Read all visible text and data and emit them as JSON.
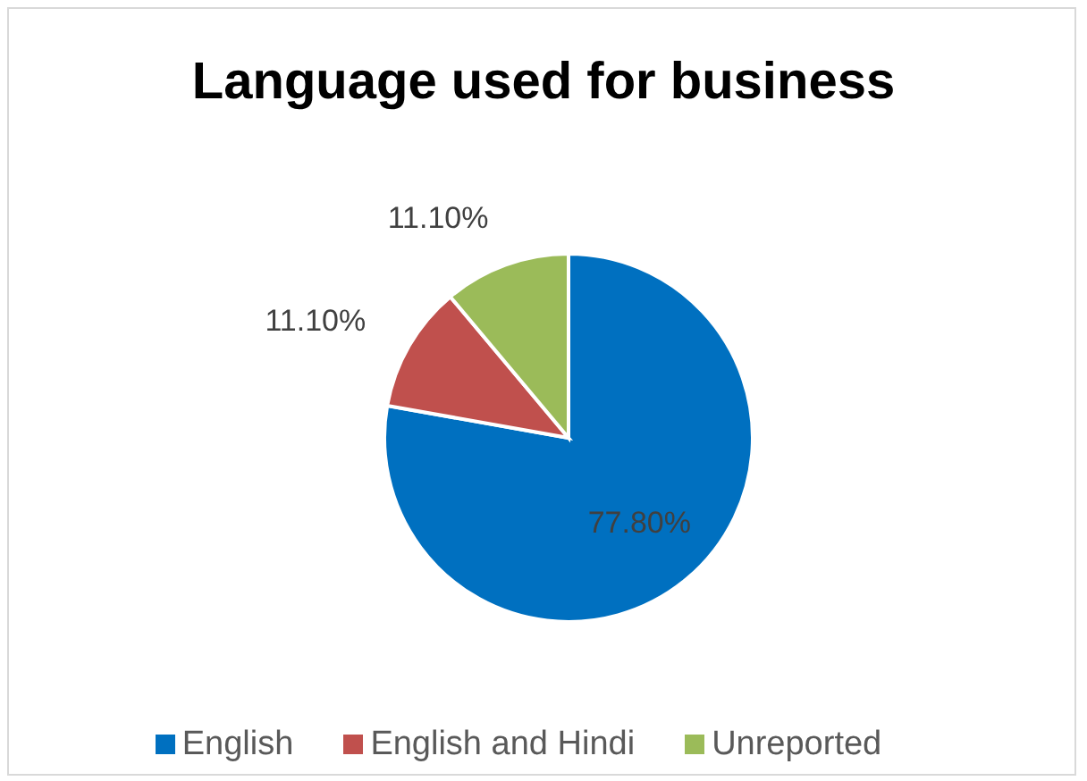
{
  "chart_data": {
    "type": "pie",
    "title": "Language used for business",
    "categories": [
      "English",
      "English and Hindi",
      "Unreported"
    ],
    "values": [
      77.8,
      11.1,
      11.1
    ],
    "colors": [
      "#0070c0",
      "#c0504d",
      "#9bbb59"
    ],
    "value_labels": [
      "77.80%",
      "11.10%",
      "11.10%"
    ],
    "legend": "bottom"
  }
}
